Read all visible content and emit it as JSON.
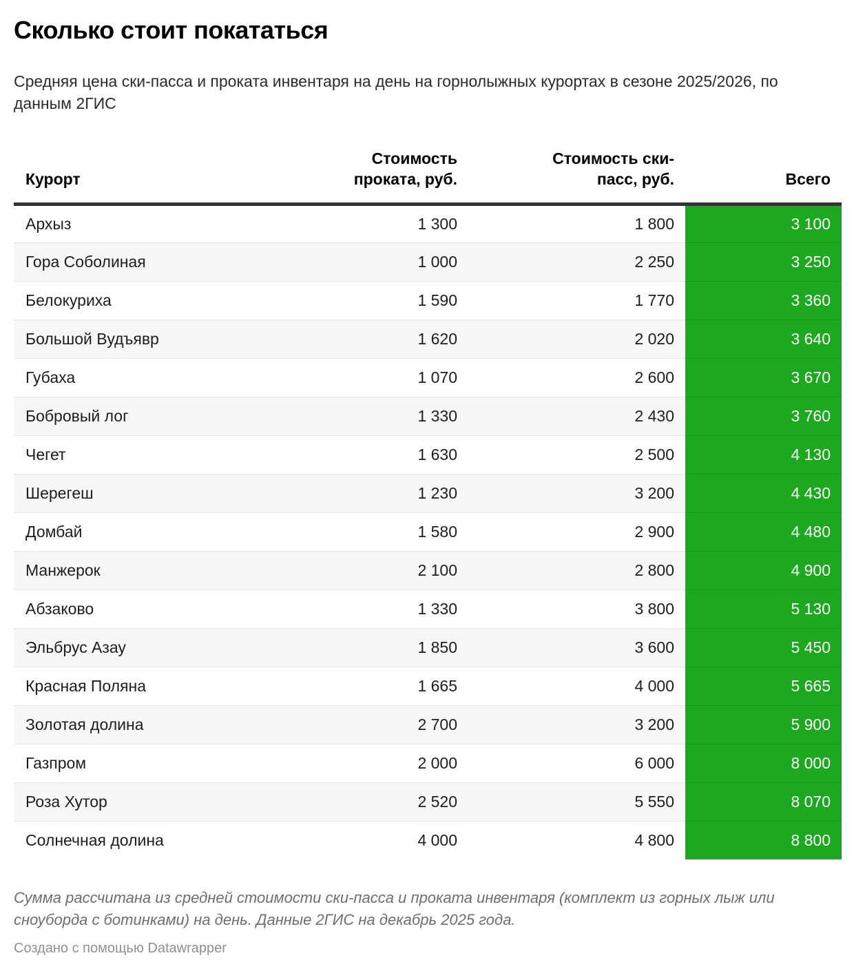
{
  "header": {
    "title": "Сколько стоит покататься",
    "subtitle": "Средняя цена ски-пасса и проката инвентаря на день на горнолыжных курортах в сезоне 2025/2026, по данным 2ГИС"
  },
  "table": {
    "columns": [
      {
        "label": "Курорт",
        "align": "left"
      },
      {
        "label": "Стоимость\nпроката, руб.",
        "align": "right"
      },
      {
        "label": "Стоимость ски-\nпасс, руб.",
        "align": "right"
      },
      {
        "label": "Всего",
        "align": "right"
      }
    ],
    "rows": [
      [
        "Архыз",
        "1 300",
        "1 800",
        "3 100"
      ],
      [
        "Гора Соболиная",
        "1 000",
        "2 250",
        "3 250"
      ],
      [
        "Белокуриха",
        "1 590",
        "1 770",
        "3 360"
      ],
      [
        "Большой Вудъявр",
        "1 620",
        "2 020",
        "3 640"
      ],
      [
        "Губаха",
        "1 070",
        "2 600",
        "3 670"
      ],
      [
        "Бобровый лог",
        "1 330",
        "2 430",
        "3 760"
      ],
      [
        "Чегет",
        "1 630",
        "2 500",
        "4 130"
      ],
      [
        "Шерегеш",
        "1 230",
        "3 200",
        "4 430"
      ],
      [
        "Домбай",
        "1 580",
        "2 900",
        "4 480"
      ],
      [
        "Манжерок",
        "2 100",
        "2 800",
        "4 900"
      ],
      [
        "Абзаково",
        "1 330",
        "3 800",
        "5 130"
      ],
      [
        "Эльбрус Азау",
        "1 850",
        "3 600",
        "5 450"
      ],
      [
        "Красная Поляна",
        "1 665",
        "4 000",
        "5 665"
      ],
      [
        "Золотая долина",
        "2 700",
        "3 200",
        "5 900"
      ],
      [
        "Газпром",
        "2 000",
        "6 000",
        "8 000"
      ],
      [
        "Роза Хутор",
        "2 520",
        "5 550",
        "8 070"
      ],
      [
        "Солнечная долина",
        "4 000",
        "4 800",
        "8 800"
      ]
    ]
  },
  "footer": {
    "note": "Сумма рассчитана из средней стоимости ски-пасса и проката инвентаря (комплект из горных лыж или сноуборда с ботинками) на день. Данные 2ГИС на декабрь 2025 года.",
    "attribution": "Создано с помощью Datawrapper"
  },
  "colors": {
    "total_column_green": "#1ca81f",
    "total_row_divider_green": "#189c1c",
    "header_rule": "#333333",
    "row_alt_background": "#f7f7f7",
    "row_divider": "#e8e8e8",
    "footnote_gray": "#6e6e6e",
    "attribution_gray": "#909090"
  },
  "chart_data": {
    "type": "table",
    "title": "Сколько стоит покататься",
    "subtitle": "Средняя цена ски-пасса и проката инвентаря на день на горнолыжных курортах в сезоне 2025/2026, по данным 2ГИС",
    "columns": [
      "Курорт",
      "Стоимость проката, руб.",
      "Стоимость ски-пасс, руб.",
      "Всего"
    ],
    "rows": [
      {
        "resort": "Архыз",
        "rental": 1300,
        "skipass": 1800,
        "total": 3100
      },
      {
        "resort": "Гора Соболиная",
        "rental": 1000,
        "skipass": 2250,
        "total": 3250
      },
      {
        "resort": "Белокуриха",
        "rental": 1590,
        "skipass": 1770,
        "total": 3360
      },
      {
        "resort": "Большой Вудъявр",
        "rental": 1620,
        "skipass": 2020,
        "total": 3640
      },
      {
        "resort": "Губаха",
        "rental": 1070,
        "skipass": 2600,
        "total": 3670
      },
      {
        "resort": "Бобровый лог",
        "rental": 1330,
        "skipass": 2430,
        "total": 3760
      },
      {
        "resort": "Чегет",
        "rental": 1630,
        "skipass": 2500,
        "total": 4130
      },
      {
        "resort": "Шерегеш",
        "rental": 1230,
        "skipass": 3200,
        "total": 4430
      },
      {
        "resort": "Домбай",
        "rental": 1580,
        "skipass": 2900,
        "total": 4480
      },
      {
        "resort": "Манжерок",
        "rental": 2100,
        "skipass": 2800,
        "total": 4900
      },
      {
        "resort": "Абзаково",
        "rental": 1330,
        "skipass": 3800,
        "total": 5130
      },
      {
        "resort": "Эльбрус Азау",
        "rental": 1850,
        "skipass": 3600,
        "total": 5450
      },
      {
        "resort": "Красная Поляна",
        "rental": 1665,
        "skipass": 4000,
        "total": 5665
      },
      {
        "resort": "Золотая долина",
        "rental": 2700,
        "skipass": 3200,
        "total": 5900
      },
      {
        "resort": "Газпром",
        "rental": 2000,
        "skipass": 6000,
        "total": 8000
      },
      {
        "resort": "Роза Хутор",
        "rental": 2520,
        "skipass": 5550,
        "total": 8070
      },
      {
        "resort": "Солнечная долина",
        "rental": 4000,
        "skipass": 4800,
        "total": 8800
      }
    ],
    "highlighted_column": "Всего",
    "sort": "total ascending",
    "source_note": "Данные 2ГИС на декабрь 2025 года"
  }
}
